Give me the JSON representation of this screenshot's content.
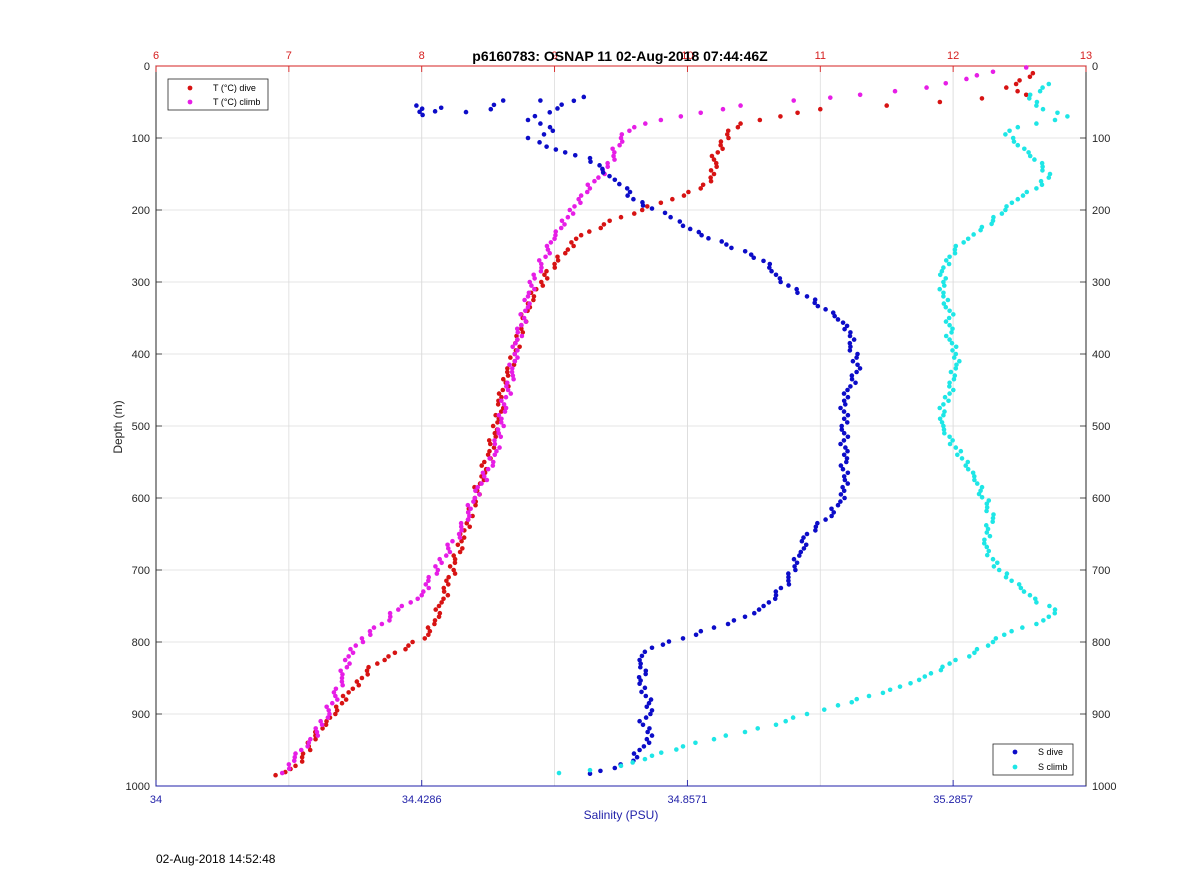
{
  "chart_data": {
    "type": "scatter",
    "title": "p6160783: OSNAP 11 02-Aug-2018 07:44:46Z",
    "ylabel": "Depth (m)",
    "xlabel_bottom": "Salinity (PSU)",
    "ylim": [
      0,
      1000
    ],
    "y_reversed": true,
    "y_ticks": [
      0,
      100,
      200,
      300,
      400,
      500,
      600,
      700,
      800,
      900,
      1000
    ],
    "x_top": {
      "range": [
        6,
        13
      ],
      "ticks": [
        6,
        7,
        8,
        9,
        10,
        11,
        12,
        13
      ],
      "color": "#d62020"
    },
    "x_bottom": {
      "range": [
        34,
        35.5
      ],
      "ticks": [
        34,
        34.4286,
        34.8571,
        35.2857
      ],
      "tick_labels": [
        "34",
        "34.4286",
        "34.8571",
        "35.2857"
      ],
      "color": "#1f1fa8"
    },
    "grid": true,
    "legend_top_left": [
      "T (°C) dive",
      "T (°C) climb"
    ],
    "legend_bottom_right": [
      "S dive",
      "S climb"
    ],
    "series": [
      {
        "name": "T (°C) dive",
        "axis": "top",
        "color": "#d71313",
        "points": [
          [
            12.6,
            10
          ],
          [
            12.5,
            20
          ],
          [
            12.4,
            30
          ],
          [
            12.55,
            40
          ],
          [
            11.9,
            50
          ],
          [
            11.5,
            55
          ],
          [
            11.0,
            60
          ],
          [
            10.7,
            70
          ],
          [
            10.4,
            80
          ],
          [
            10.3,
            95
          ],
          [
            10.25,
            110
          ],
          [
            10.2,
            130
          ],
          [
            10.2,
            150
          ],
          [
            10.1,
            170
          ],
          [
            9.8,
            190
          ],
          [
            9.5,
            210
          ],
          [
            9.2,
            235
          ],
          [
            9.1,
            255
          ],
          [
            9.0,
            275
          ],
          [
            8.9,
            300
          ],
          [
            8.8,
            330
          ],
          [
            8.75,
            360
          ],
          [
            8.72,
            380
          ],
          [
            8.7,
            400
          ],
          [
            8.65,
            430
          ],
          [
            8.6,
            460
          ],
          [
            8.58,
            490
          ],
          [
            8.55,
            510
          ],
          [
            8.5,
            540
          ],
          [
            8.45,
            570
          ],
          [
            8.4,
            600
          ],
          [
            8.35,
            630
          ],
          [
            8.3,
            660
          ],
          [
            8.25,
            690
          ],
          [
            8.2,
            720
          ],
          [
            8.15,
            745
          ],
          [
            8.1,
            770
          ],
          [
            8.05,
            790
          ],
          [
            7.9,
            805
          ],
          [
            7.75,
            820
          ],
          [
            7.6,
            835
          ],
          [
            7.55,
            850
          ],
          [
            7.45,
            870
          ],
          [
            7.4,
            885
          ],
          [
            7.35,
            900
          ],
          [
            7.28,
            915
          ],
          [
            7.2,
            930
          ],
          [
            7.15,
            945
          ],
          [
            7.1,
            960
          ],
          [
            7.05,
            972
          ],
          [
            6.9,
            985
          ]
        ]
      },
      {
        "name": "T (°C) climb",
        "axis": "top",
        "color": "#e61ee6",
        "points": [
          [
            6.95,
            982
          ],
          [
            7.0,
            970
          ],
          [
            7.05,
            955
          ],
          [
            7.15,
            940
          ],
          [
            7.25,
            915
          ],
          [
            7.3,
            895
          ],
          [
            7.35,
            875
          ],
          [
            7.4,
            850
          ],
          [
            7.45,
            820
          ],
          [
            7.55,
            795
          ],
          [
            7.7,
            775
          ],
          [
            7.85,
            750
          ],
          [
            8.0,
            735
          ],
          [
            8.05,
            715
          ],
          [
            8.15,
            690
          ],
          [
            8.2,
            670
          ],
          [
            8.3,
            645
          ],
          [
            8.35,
            620
          ],
          [
            8.4,
            600
          ],
          [
            8.45,
            580
          ],
          [
            8.5,
            560
          ],
          [
            8.55,
            540
          ],
          [
            8.58,
            510
          ],
          [
            8.6,
            490
          ],
          [
            8.62,
            470
          ],
          [
            8.65,
            450
          ],
          [
            8.68,
            425
          ],
          [
            8.7,
            400
          ],
          [
            8.72,
            380
          ],
          [
            8.75,
            360
          ],
          [
            8.78,
            340
          ],
          [
            8.8,
            320
          ],
          [
            8.85,
            295
          ],
          [
            8.9,
            275
          ],
          [
            8.95,
            255
          ],
          [
            9.0,
            240
          ],
          [
            9.05,
            225
          ],
          [
            9.1,
            210
          ],
          [
            9.15,
            195
          ],
          [
            9.2,
            180
          ],
          [
            9.3,
            160
          ],
          [
            9.4,
            140
          ],
          [
            9.45,
            120
          ],
          [
            9.5,
            100
          ],
          [
            9.6,
            85
          ],
          [
            9.8,
            75
          ],
          [
            10.1,
            65
          ],
          [
            10.4,
            55
          ],
          [
            10.8,
            48
          ],
          [
            11.3,
            40
          ],
          [
            11.8,
            30
          ],
          [
            12.1,
            18
          ],
          [
            12.3,
            8
          ],
          [
            12.55,
            2
          ]
        ]
      },
      {
        "name": "S dive",
        "axis": "bottom",
        "color": "#0c0cc8",
        "points": [
          [
            34.42,
            55
          ],
          [
            34.43,
            68
          ],
          [
            34.46,
            58
          ],
          [
            34.5,
            64
          ],
          [
            34.54,
            60
          ],
          [
            34.56,
            48
          ],
          [
            34.62,
            48
          ],
          [
            34.69,
            43
          ],
          [
            34.6,
            75
          ],
          [
            34.62,
            80
          ],
          [
            34.64,
            90
          ],
          [
            34.6,
            100
          ],
          [
            34.63,
            112
          ],
          [
            34.66,
            120
          ],
          [
            34.7,
            128
          ],
          [
            34.72,
            143
          ],
          [
            34.74,
            158
          ],
          [
            34.76,
            170
          ],
          [
            34.77,
            185
          ],
          [
            34.8,
            198
          ],
          [
            34.83,
            210
          ],
          [
            34.85,
            222
          ],
          [
            34.88,
            235
          ],
          [
            34.92,
            248
          ],
          [
            34.96,
            262
          ],
          [
            34.99,
            275
          ],
          [
            35.0,
            290
          ],
          [
            35.02,
            305
          ],
          [
            35.05,
            320
          ],
          [
            35.08,
            338
          ],
          [
            35.1,
            352
          ],
          [
            35.12,
            370
          ],
          [
            35.12,
            390
          ],
          [
            35.13,
            405
          ],
          [
            35.13,
            425
          ],
          [
            35.12,
            445
          ],
          [
            35.11,
            465
          ],
          [
            35.11,
            490
          ],
          [
            35.11,
            510
          ],
          [
            35.11,
            540
          ],
          [
            35.11,
            570
          ],
          [
            35.11,
            590
          ],
          [
            35.1,
            610
          ],
          [
            35.08,
            630
          ],
          [
            35.05,
            650
          ],
          [
            35.04,
            675
          ],
          [
            35.03,
            695
          ],
          [
            35.02,
            715
          ],
          [
            35.0,
            735
          ],
          [
            34.98,
            750
          ],
          [
            34.95,
            765
          ],
          [
            34.9,
            780
          ],
          [
            34.85,
            795
          ],
          [
            34.8,
            808
          ],
          [
            34.78,
            825
          ],
          [
            34.79,
            840
          ],
          [
            34.78,
            858
          ],
          [
            34.79,
            875
          ],
          [
            34.8,
            895
          ],
          [
            34.78,
            910
          ],
          [
            34.8,
            930
          ],
          [
            34.78,
            950
          ],
          [
            34.77,
            965
          ],
          [
            34.74,
            975
          ],
          [
            34.7,
            983
          ]
        ]
      },
      {
        "name": "S climb",
        "axis": "bottom",
        "color": "#1ee6e6",
        "points": [
          [
            34.65,
            982
          ],
          [
            34.7,
            978
          ],
          [
            34.75,
            972
          ],
          [
            34.8,
            958
          ],
          [
            34.85,
            945
          ],
          [
            34.9,
            935
          ],
          [
            34.95,
            925
          ],
          [
            35.0,
            915
          ],
          [
            35.05,
            900
          ],
          [
            35.1,
            888
          ],
          [
            35.15,
            875
          ],
          [
            35.2,
            862
          ],
          [
            35.24,
            848
          ],
          [
            35.28,
            830
          ],
          [
            35.32,
            815
          ],
          [
            35.35,
            800
          ],
          [
            35.38,
            785
          ],
          [
            35.42,
            775
          ],
          [
            35.44,
            765
          ],
          [
            35.45,
            755
          ],
          [
            35.42,
            745
          ],
          [
            35.4,
            730
          ],
          [
            35.38,
            715
          ],
          [
            35.36,
            700
          ],
          [
            35.35,
            685
          ],
          [
            35.34,
            668
          ],
          [
            35.34,
            648
          ],
          [
            35.35,
            628
          ],
          [
            35.34,
            608
          ],
          [
            35.33,
            590
          ],
          [
            35.32,
            575
          ],
          [
            35.31,
            560
          ],
          [
            35.3,
            545
          ],
          [
            35.29,
            530
          ],
          [
            35.28,
            515
          ],
          [
            35.27,
            500
          ],
          [
            35.27,
            485
          ],
          [
            35.27,
            470
          ],
          [
            35.28,
            455
          ],
          [
            35.28,
            440
          ],
          [
            35.29,
            420
          ],
          [
            35.29,
            400
          ],
          [
            35.28,
            380
          ],
          [
            35.28,
            360
          ],
          [
            35.28,
            340
          ],
          [
            35.27,
            320
          ],
          [
            35.27,
            300
          ],
          [
            35.27,
            280
          ],
          [
            35.28,
            265
          ],
          [
            35.29,
            250
          ],
          [
            35.31,
            240
          ],
          [
            35.33,
            228
          ],
          [
            35.35,
            215
          ],
          [
            35.37,
            200
          ],
          [
            35.39,
            185
          ],
          [
            35.42,
            170
          ],
          [
            35.44,
            155
          ],
          [
            35.43,
            140
          ],
          [
            35.41,
            125
          ],
          [
            35.39,
            110
          ],
          [
            35.37,
            95
          ],
          [
            35.39,
            85
          ],
          [
            35.42,
            80
          ],
          [
            35.45,
            75
          ],
          [
            35.47,
            70
          ],
          [
            35.42,
            55
          ],
          [
            35.41,
            40
          ],
          [
            35.43,
            30
          ],
          [
            35.44,
            25
          ]
        ]
      }
    ]
  },
  "footer_text": "02-Aug-2018 14:52:48"
}
